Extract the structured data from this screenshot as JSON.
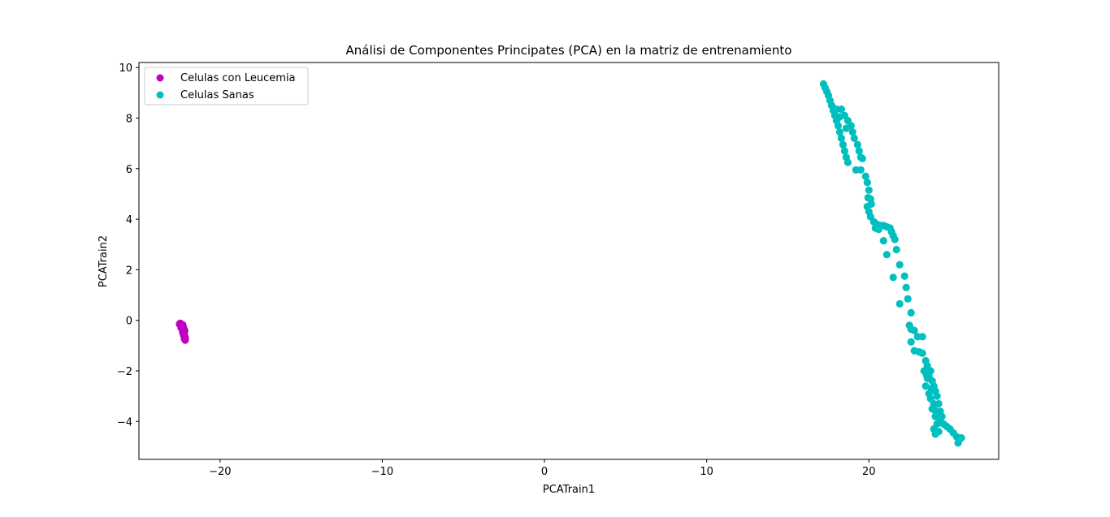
{
  "chart_data": {
    "type": "scatter",
    "title": "Análisi de Componentes Principates (PCA) en la matriz de entrenamiento",
    "xlabel": "PCATrain1",
    "ylabel": "PCATrain2",
    "xlim": [
      -25,
      28
    ],
    "ylim": [
      -5.5,
      10.2
    ],
    "xticks": [
      -20,
      -10,
      0,
      10,
      20
    ],
    "xtick_labels": [
      "−20",
      "−10",
      "0",
      "10",
      "20"
    ],
    "yticks": [
      -4,
      -2,
      0,
      2,
      4,
      6,
      8,
      10
    ],
    "ytick_labels": [
      "−4",
      "−2",
      "0",
      "2",
      "4",
      "6",
      "8",
      "10"
    ],
    "grid": false,
    "legend_position": "top-left",
    "series": [
      {
        "name": "Celulas con Leucemia",
        "color": "#bf00bf",
        "points": [
          [
            -22.5,
            -0.15
          ],
          [
            -22.45,
            -0.12
          ],
          [
            -22.4,
            -0.2
          ],
          [
            -22.35,
            -0.25
          ],
          [
            -22.3,
            -0.18
          ],
          [
            -22.4,
            -0.3
          ],
          [
            -22.3,
            -0.35
          ],
          [
            -22.25,
            -0.42
          ],
          [
            -22.2,
            -0.5
          ],
          [
            -22.3,
            -0.48
          ],
          [
            -22.25,
            -0.58
          ],
          [
            -22.2,
            -0.62
          ],
          [
            -22.15,
            -0.68
          ],
          [
            -22.2,
            -0.72
          ],
          [
            -22.15,
            -0.78
          ],
          [
            -22.35,
            -0.22
          ],
          [
            -22.25,
            -0.3
          ],
          [
            -22.18,
            -0.4
          ],
          [
            -22.22,
            -0.55
          ],
          [
            -22.28,
            -0.38
          ]
        ]
      },
      {
        "name": "Celulas Sanas",
        "color": "#00bfbf",
        "points": [
          [
            17.2,
            9.35
          ],
          [
            17.3,
            9.2
          ],
          [
            17.4,
            9.05
          ],
          [
            17.5,
            8.9
          ],
          [
            17.6,
            8.7
          ],
          [
            17.7,
            8.5
          ],
          [
            17.8,
            8.3
          ],
          [
            17.9,
            8.1
          ],
          [
            18.0,
            7.9
          ],
          [
            18.1,
            7.7
          ],
          [
            18.2,
            7.45
          ],
          [
            18.3,
            7.2
          ],
          [
            18.4,
            6.95
          ],
          [
            18.5,
            6.7
          ],
          [
            18.6,
            6.45
          ],
          [
            18.7,
            6.25
          ],
          [
            18.3,
            8.35
          ],
          [
            18.5,
            8.1
          ],
          [
            18.7,
            7.9
          ],
          [
            18.9,
            7.7
          ],
          [
            19.0,
            7.45
          ],
          [
            19.1,
            7.2
          ],
          [
            19.3,
            6.95
          ],
          [
            19.4,
            6.7
          ],
          [
            19.5,
            6.45
          ],
          [
            18.0,
            8.35
          ],
          [
            18.2,
            8.05
          ],
          [
            18.6,
            7.6
          ],
          [
            19.6,
            6.4
          ],
          [
            19.2,
            5.95
          ],
          [
            19.5,
            5.95
          ],
          [
            19.8,
            5.7
          ],
          [
            19.9,
            5.45
          ],
          [
            20.0,
            5.15
          ],
          [
            19.95,
            4.85
          ],
          [
            20.1,
            4.8
          ],
          [
            20.15,
            4.6
          ],
          [
            19.9,
            4.5
          ],
          [
            20.0,
            4.3
          ],
          [
            20.1,
            4.1
          ],
          [
            20.3,
            3.9
          ],
          [
            20.5,
            3.8
          ],
          [
            20.7,
            3.75
          ],
          [
            20.9,
            3.75
          ],
          [
            21.1,
            3.7
          ],
          [
            21.3,
            3.65
          ],
          [
            20.4,
            3.65
          ],
          [
            20.6,
            3.6
          ],
          [
            21.4,
            3.5
          ],
          [
            21.5,
            3.35
          ],
          [
            21.6,
            3.2
          ],
          [
            20.9,
            3.15
          ],
          [
            21.7,
            2.8
          ],
          [
            21.1,
            2.6
          ],
          [
            21.9,
            2.2
          ],
          [
            21.5,
            1.7
          ],
          [
            22.2,
            1.75
          ],
          [
            22.3,
            1.3
          ],
          [
            22.4,
            0.85
          ],
          [
            21.9,
            0.65
          ],
          [
            22.6,
            0.3
          ],
          [
            22.5,
            -0.2
          ],
          [
            22.6,
            -0.35
          ],
          [
            22.8,
            -0.4
          ],
          [
            23.0,
            -0.65
          ],
          [
            22.6,
            -0.85
          ],
          [
            23.3,
            -0.65
          ],
          [
            22.8,
            -1.2
          ],
          [
            23.1,
            -1.25
          ],
          [
            23.3,
            -1.3
          ],
          [
            23.5,
            -1.6
          ],
          [
            23.6,
            -1.8
          ],
          [
            23.8,
            -2.0
          ],
          [
            23.7,
            -2.2
          ],
          [
            23.9,
            -2.4
          ],
          [
            24.0,
            -2.6
          ],
          [
            24.1,
            -2.8
          ],
          [
            23.6,
            -2.3
          ],
          [
            23.5,
            -2.6
          ],
          [
            23.7,
            -2.9
          ],
          [
            23.8,
            -3.1
          ],
          [
            24.0,
            -3.3
          ],
          [
            24.2,
            -3.0
          ],
          [
            24.3,
            -3.3
          ],
          [
            24.4,
            -3.6
          ],
          [
            23.9,
            -3.5
          ],
          [
            24.1,
            -3.8
          ],
          [
            24.2,
            -4.1
          ],
          [
            24.4,
            -3.9
          ],
          [
            24.6,
            -4.1
          ],
          [
            24.8,
            -4.2
          ],
          [
            25.0,
            -4.3
          ],
          [
            25.2,
            -4.45
          ],
          [
            25.4,
            -4.6
          ],
          [
            25.6,
            -4.7
          ],
          [
            25.7,
            -4.65
          ],
          [
            25.5,
            -4.85
          ],
          [
            24.0,
            -4.3
          ],
          [
            24.1,
            -4.5
          ],
          [
            24.3,
            -4.4
          ],
          [
            23.4,
            -2.0
          ],
          [
            23.55,
            -2.15
          ],
          [
            23.85,
            -2.7
          ],
          [
            24.05,
            -3.55
          ],
          [
            24.5,
            -3.8
          ]
        ]
      }
    ]
  }
}
